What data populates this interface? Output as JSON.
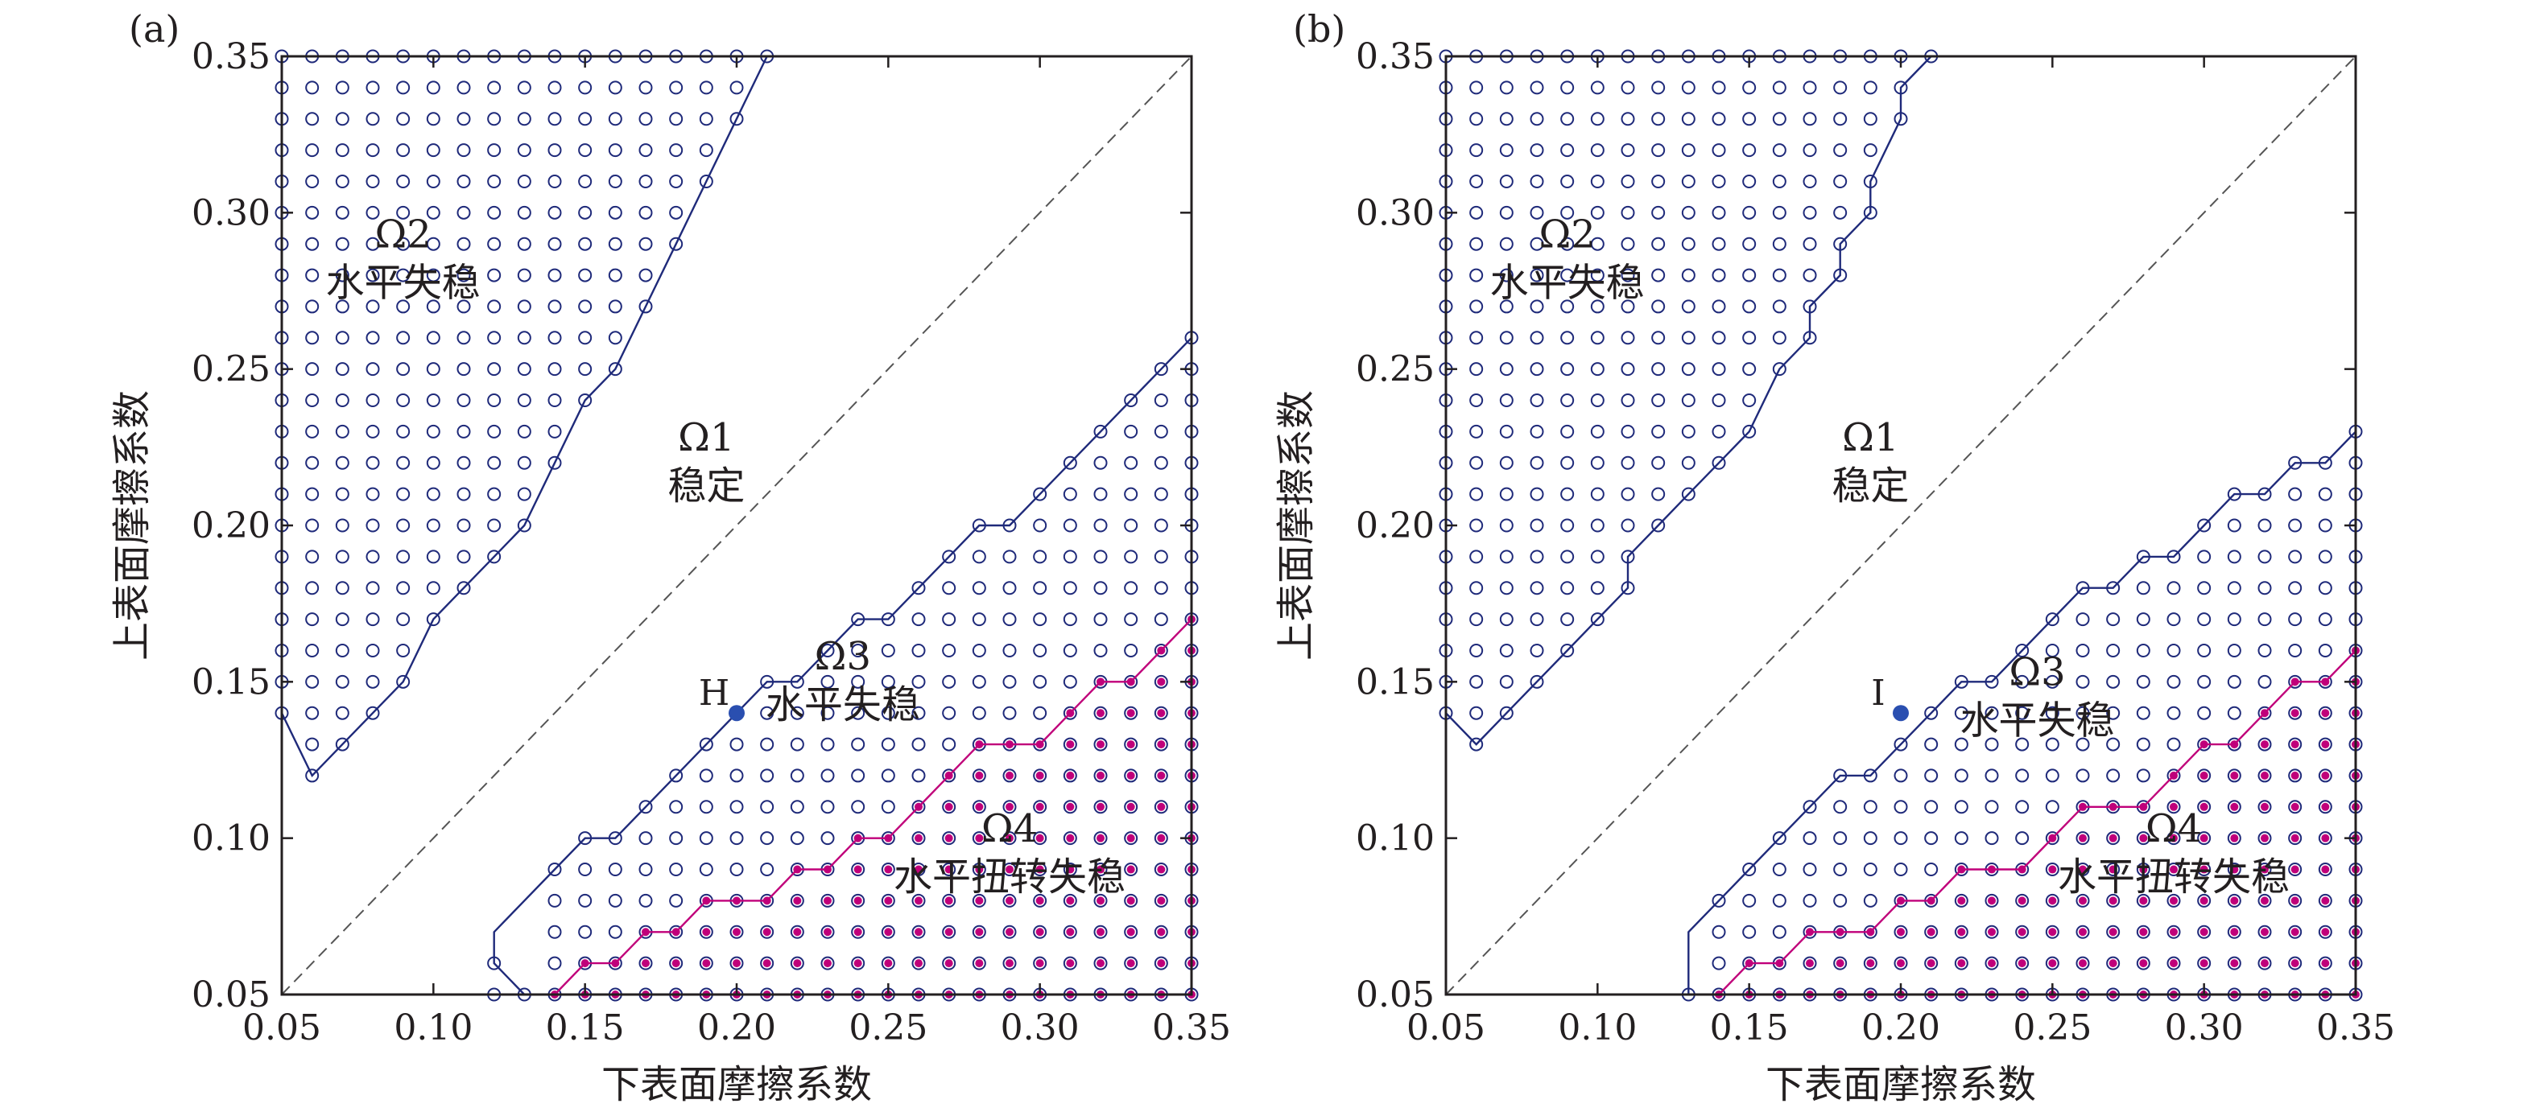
{
  "colors": {
    "axis": "#231f20",
    "boundary": "#1f2a7a",
    "open_marker": "#1f2a7a",
    "filled_marker": "#c0007a",
    "point": "#2a4fb0"
  },
  "chart_data": [
    {
      "type": "scatter",
      "panel_label": "(a)",
      "xlabel": "下表面摩擦系数",
      "ylabel": "上表面摩擦系数",
      "xlim": [
        0.05,
        0.35
      ],
      "ylim": [
        0.05,
        0.35
      ],
      "xticks": [
        "0.05",
        "0.10",
        "0.15",
        "0.20",
        "0.25",
        "0.30",
        "0.35"
      ],
      "yticks": [
        "0.05",
        "0.10",
        "0.15",
        "0.20",
        "0.25",
        "0.30",
        "0.35"
      ],
      "diagonal": true,
      "regions": [
        {
          "id": "Ω2",
          "label": "水平失稳",
          "label_pos": [
            0.09,
            0.275
          ]
        },
        {
          "id": "Ω1",
          "label": "稳定",
          "label_pos": [
            0.19,
            0.21
          ]
        },
        {
          "id": "Ω3",
          "label": "水平失稳",
          "label_pos": [
            0.235,
            0.14
          ]
        },
        {
          "id": "Ω4",
          "label": "水平扭转失稳",
          "label_pos": [
            0.29,
            0.085
          ]
        }
      ],
      "marked_point": {
        "label": "H",
        "x": 0.2,
        "y": 0.14
      },
      "upper_boundary": [
        [
          0.05,
          0.14
        ],
        [
          0.06,
          0.12
        ],
        [
          0.07,
          0.13
        ],
        [
          0.08,
          0.14
        ],
        [
          0.09,
          0.15
        ],
        [
          0.1,
          0.17
        ],
        [
          0.11,
          0.18
        ],
        [
          0.12,
          0.19
        ],
        [
          0.13,
          0.2
        ],
        [
          0.14,
          0.22
        ],
        [
          0.15,
          0.24
        ],
        [
          0.16,
          0.25
        ],
        [
          0.17,
          0.27
        ],
        [
          0.18,
          0.29
        ],
        [
          0.19,
          0.31
        ],
        [
          0.2,
          0.33
        ],
        [
          0.21,
          0.35
        ]
      ],
      "lower_boundary": [
        [
          0.13,
          0.05
        ],
        [
          0.12,
          0.06
        ],
        [
          0.12,
          0.07
        ],
        [
          0.13,
          0.08
        ],
        [
          0.14,
          0.09
        ],
        [
          0.15,
          0.1
        ],
        [
          0.16,
          0.1
        ],
        [
          0.17,
          0.11
        ],
        [
          0.18,
          0.12
        ],
        [
          0.19,
          0.13
        ],
        [
          0.2,
          0.14
        ],
        [
          0.21,
          0.15
        ],
        [
          0.22,
          0.15
        ],
        [
          0.23,
          0.16
        ],
        [
          0.24,
          0.17
        ],
        [
          0.25,
          0.17
        ],
        [
          0.26,
          0.18
        ],
        [
          0.27,
          0.19
        ],
        [
          0.28,
          0.2
        ],
        [
          0.29,
          0.2
        ],
        [
          0.3,
          0.21
        ],
        [
          0.31,
          0.22
        ],
        [
          0.32,
          0.23
        ],
        [
          0.33,
          0.24
        ],
        [
          0.34,
          0.25
        ],
        [
          0.35,
          0.26
        ]
      ],
      "omega4_boundary": [
        [
          0.14,
          0.05
        ],
        [
          0.15,
          0.06
        ],
        [
          0.16,
          0.06
        ],
        [
          0.17,
          0.07
        ],
        [
          0.18,
          0.07
        ],
        [
          0.19,
          0.08
        ],
        [
          0.2,
          0.08
        ],
        [
          0.21,
          0.08
        ],
        [
          0.22,
          0.09
        ],
        [
          0.23,
          0.09
        ],
        [
          0.24,
          0.1
        ],
        [
          0.25,
          0.1
        ],
        [
          0.26,
          0.11
        ],
        [
          0.27,
          0.12
        ],
        [
          0.28,
          0.13
        ],
        [
          0.29,
          0.13
        ],
        [
          0.3,
          0.13
        ],
        [
          0.31,
          0.14
        ],
        [
          0.32,
          0.15
        ],
        [
          0.33,
          0.15
        ],
        [
          0.34,
          0.16
        ],
        [
          0.35,
          0.17
        ]
      ]
    },
    {
      "type": "scatter",
      "panel_label": "(b)",
      "xlabel": "下表面摩擦系数",
      "ylabel": "上表面摩擦系数",
      "xlim": [
        0.05,
        0.35
      ],
      "ylim": [
        0.05,
        0.35
      ],
      "xticks": [
        "0.05",
        "0.10",
        "0.15",
        "0.20",
        "0.25",
        "0.30",
        "0.35"
      ],
      "yticks": [
        "0.05",
        "0.10",
        "0.15",
        "0.20",
        "0.25",
        "0.30",
        "0.35"
      ],
      "diagonal": true,
      "regions": [
        {
          "id": "Ω2",
          "label": "水平失稳",
          "label_pos": [
            0.09,
            0.275
          ]
        },
        {
          "id": "Ω1",
          "label": "稳定",
          "label_pos": [
            0.19,
            0.21
          ]
        },
        {
          "id": "Ω3",
          "label": "水平失稳",
          "label_pos": [
            0.245,
            0.135
          ]
        },
        {
          "id": "Ω4",
          "label": "水平扭转失稳",
          "label_pos": [
            0.29,
            0.085
          ]
        }
      ],
      "marked_point": {
        "label": "I",
        "x": 0.2,
        "y": 0.14
      },
      "upper_boundary": [
        [
          0.05,
          0.14
        ],
        [
          0.06,
          0.13
        ],
        [
          0.07,
          0.14
        ],
        [
          0.08,
          0.15
        ],
        [
          0.09,
          0.16
        ],
        [
          0.1,
          0.17
        ],
        [
          0.11,
          0.18
        ],
        [
          0.11,
          0.19
        ],
        [
          0.12,
          0.2
        ],
        [
          0.13,
          0.21
        ],
        [
          0.14,
          0.22
        ],
        [
          0.15,
          0.23
        ],
        [
          0.16,
          0.25
        ],
        [
          0.17,
          0.26
        ],
        [
          0.17,
          0.27
        ],
        [
          0.18,
          0.28
        ],
        [
          0.18,
          0.29
        ],
        [
          0.19,
          0.3
        ],
        [
          0.19,
          0.31
        ],
        [
          0.2,
          0.33
        ],
        [
          0.2,
          0.34
        ],
        [
          0.21,
          0.35
        ]
      ],
      "lower_boundary": [
        [
          0.13,
          0.05
        ],
        [
          0.13,
          0.07
        ],
        [
          0.14,
          0.08
        ],
        [
          0.15,
          0.09
        ],
        [
          0.16,
          0.1
        ],
        [
          0.17,
          0.11
        ],
        [
          0.18,
          0.12
        ],
        [
          0.19,
          0.12
        ],
        [
          0.2,
          0.13
        ],
        [
          0.21,
          0.14
        ],
        [
          0.22,
          0.15
        ],
        [
          0.23,
          0.15
        ],
        [
          0.24,
          0.16
        ],
        [
          0.25,
          0.17
        ],
        [
          0.26,
          0.18
        ],
        [
          0.27,
          0.18
        ],
        [
          0.28,
          0.19
        ],
        [
          0.29,
          0.19
        ],
        [
          0.3,
          0.2
        ],
        [
          0.31,
          0.21
        ],
        [
          0.32,
          0.21
        ],
        [
          0.33,
          0.22
        ],
        [
          0.34,
          0.22
        ],
        [
          0.35,
          0.23
        ]
      ],
      "omega4_boundary": [
        [
          0.14,
          0.05
        ],
        [
          0.15,
          0.06
        ],
        [
          0.16,
          0.06
        ],
        [
          0.17,
          0.07
        ],
        [
          0.18,
          0.07
        ],
        [
          0.19,
          0.07
        ],
        [
          0.2,
          0.08
        ],
        [
          0.21,
          0.08
        ],
        [
          0.22,
          0.09
        ],
        [
          0.23,
          0.09
        ],
        [
          0.24,
          0.09
        ],
        [
          0.25,
          0.1
        ],
        [
          0.26,
          0.11
        ],
        [
          0.27,
          0.11
        ],
        [
          0.28,
          0.11
        ],
        [
          0.29,
          0.12
        ],
        [
          0.3,
          0.13
        ],
        [
          0.31,
          0.13
        ],
        [
          0.32,
          0.14
        ],
        [
          0.33,
          0.15
        ],
        [
          0.34,
          0.15
        ],
        [
          0.35,
          0.16
        ]
      ]
    }
  ]
}
